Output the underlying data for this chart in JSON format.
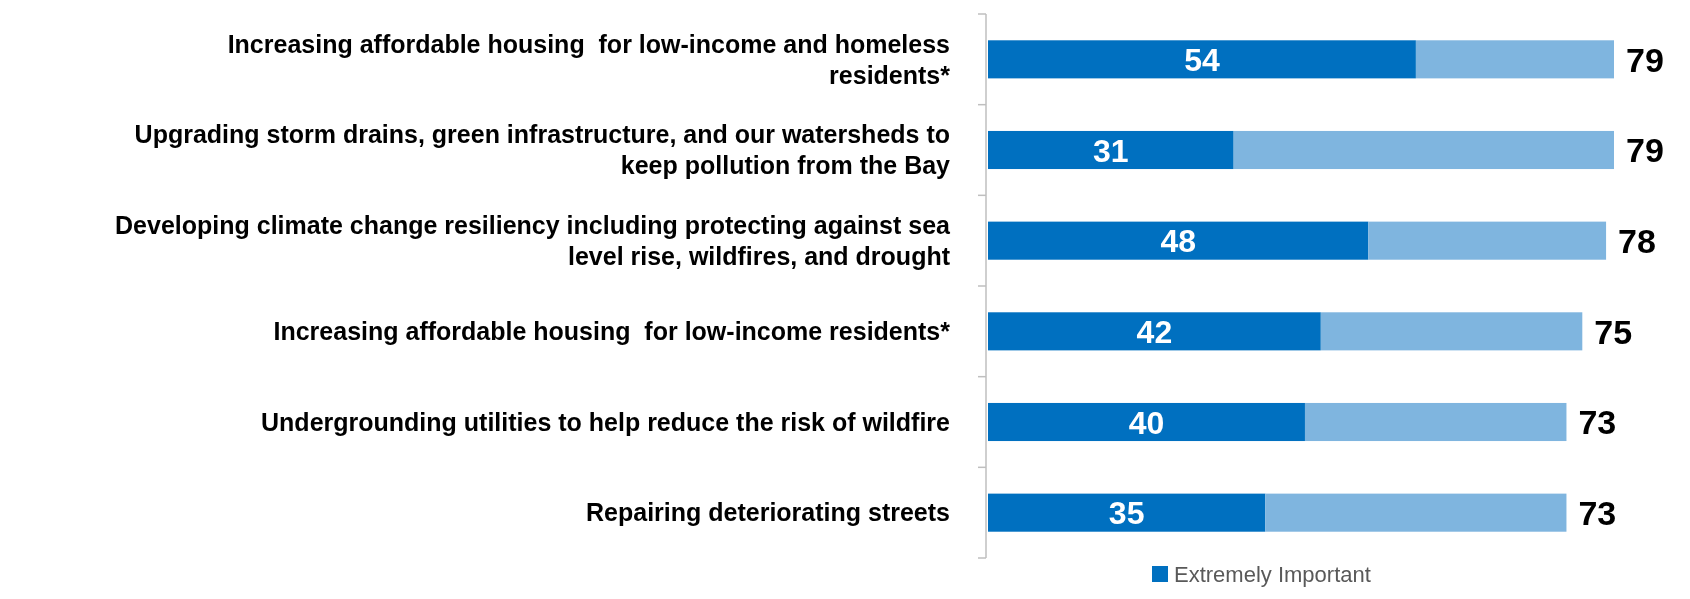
{
  "chart_data": {
    "type": "bar",
    "orientation": "horizontal",
    "stacked": true,
    "legend": "bottom",
    "categories": [
      "Increasing affordable housing  for low-income and homeless residents*",
      "Upgrading storm drains, green infrastructure, and our watersheds to keep pollution from the Bay",
      "Developing climate change resiliency including protecting against sea level rise, wildfires, and drought",
      "Increasing affordable housing  for low-income residents*",
      "Undergrounding utilities to help reduce the risk of wildfire",
      "Repairing deteriorating streets"
    ],
    "series": [
      {
        "name": "Extremely Important",
        "color": "#0070c0",
        "values": [
          54,
          31,
          48,
          42,
          40,
          35
        ],
        "value_labels": [
          "54",
          "31",
          "48",
          "42",
          "40",
          "35"
        ]
      },
      {
        "color": "#7fb5df",
        "values": [
          25,
          48,
          30,
          33,
          33,
          38
        ]
      }
    ],
    "totals": [
      "79",
      "79",
      "78",
      "75",
      "73",
      "73"
    ]
  }
}
